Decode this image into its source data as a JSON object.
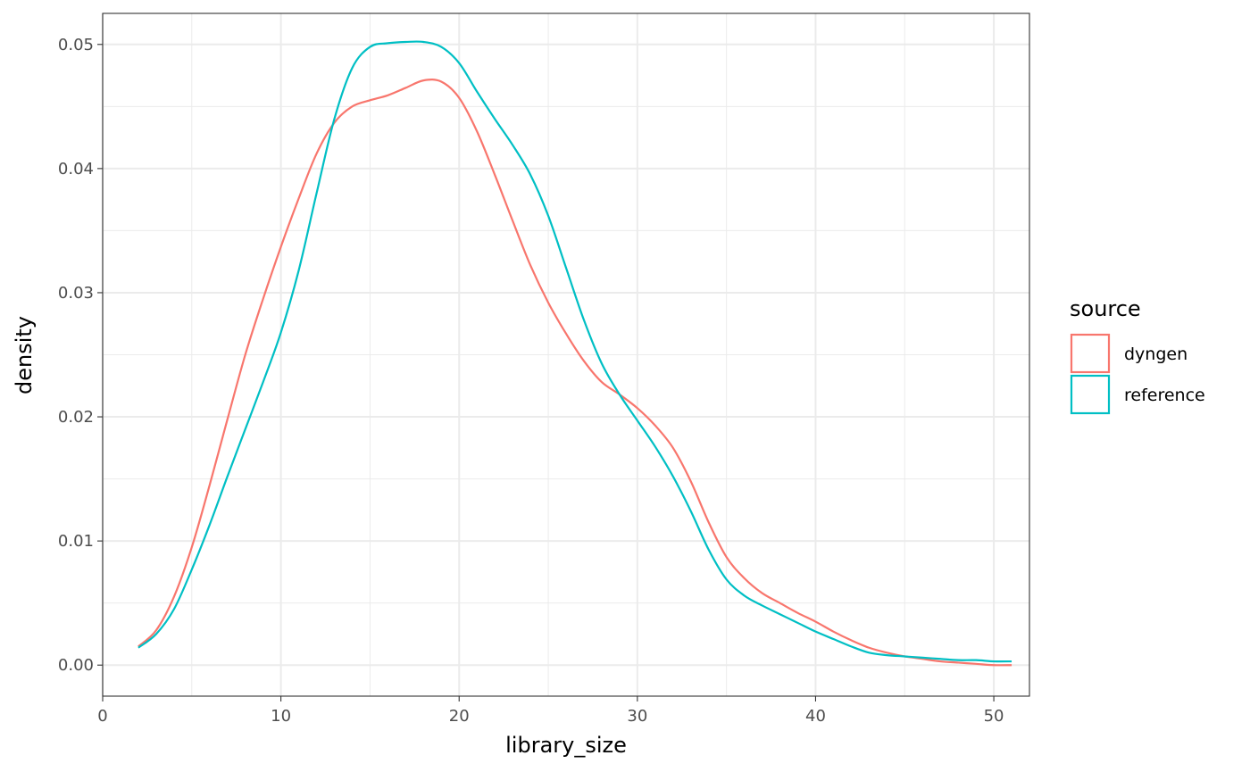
{
  "chart_data": {
    "type": "line",
    "subtype": "density",
    "title": "",
    "xlabel": "library_size",
    "ylabel": "density",
    "xlim": [
      0,
      52
    ],
    "ylim": [
      -0.0025,
      0.0525
    ],
    "x_ticks": [
      0,
      10,
      20,
      30,
      40,
      50
    ],
    "x_tick_labels": [
      "0",
      "10",
      "20",
      "30",
      "40",
      "50"
    ],
    "y_ticks": [
      0.0,
      0.01,
      0.02,
      0.03,
      0.04,
      0.05
    ],
    "y_tick_labels": [
      "0.00",
      "0.01",
      "0.02",
      "0.03",
      "0.04",
      "0.05"
    ],
    "grid": true,
    "legend": {
      "title": "source",
      "position": "right",
      "entries": [
        {
          "label": "dyngen",
          "color": "#F8766D"
        },
        {
          "label": "reference",
          "color": "#00BFC4"
        }
      ]
    },
    "series": [
      {
        "name": "dyngen",
        "color": "#F8766D",
        "points": [
          [
            2,
            0.0015
          ],
          [
            3,
            0.0028
          ],
          [
            4,
            0.0055
          ],
          [
            5,
            0.0095
          ],
          [
            6,
            0.0145
          ],
          [
            7,
            0.0198
          ],
          [
            8,
            0.025
          ],
          [
            9,
            0.0295
          ],
          [
            10,
            0.0337
          ],
          [
            11,
            0.0376
          ],
          [
            12,
            0.0412
          ],
          [
            13,
            0.0437
          ],
          [
            14,
            0.045
          ],
          [
            15,
            0.0455
          ],
          [
            16,
            0.0459
          ],
          [
            17,
            0.0465
          ],
          [
            18,
            0.0471
          ],
          [
            19,
            0.047
          ],
          [
            20,
            0.0457
          ],
          [
            21,
            0.043
          ],
          [
            22,
            0.0395
          ],
          [
            23,
            0.0358
          ],
          [
            24,
            0.0322
          ],
          [
            25,
            0.0292
          ],
          [
            26,
            0.0267
          ],
          [
            27,
            0.0245
          ],
          [
            28,
            0.0228
          ],
          [
            29,
            0.0218
          ],
          [
            30,
            0.0207
          ],
          [
            31,
            0.0193
          ],
          [
            32,
            0.0175
          ],
          [
            33,
            0.0148
          ],
          [
            34,
            0.0115
          ],
          [
            35,
            0.0087
          ],
          [
            36,
            0.007
          ],
          [
            37,
            0.0058
          ],
          [
            38,
            0.005
          ],
          [
            39,
            0.0042
          ],
          [
            40,
            0.0035
          ],
          [
            41,
            0.0027
          ],
          [
            42,
            0.002
          ],
          [
            43,
            0.0014
          ],
          [
            44,
            0.001
          ],
          [
            45,
            0.0007
          ],
          [
            46,
            0.0005
          ],
          [
            47,
            0.0003
          ],
          [
            48,
            0.0002
          ],
          [
            49,
            0.0001
          ],
          [
            50,
            0.0
          ],
          [
            51,
            0.0
          ]
        ]
      },
      {
        "name": "reference",
        "color": "#00BFC4",
        "points": [
          [
            2,
            0.0014
          ],
          [
            3,
            0.0025
          ],
          [
            4,
            0.0045
          ],
          [
            5,
            0.0077
          ],
          [
            6,
            0.0113
          ],
          [
            7,
            0.0152
          ],
          [
            8,
            0.019
          ],
          [
            9,
            0.0228
          ],
          [
            10,
            0.0268
          ],
          [
            11,
            0.0318
          ],
          [
            12,
            0.038
          ],
          [
            13,
            0.044
          ],
          [
            14,
            0.0481
          ],
          [
            15,
            0.0498
          ],
          [
            16,
            0.0501
          ],
          [
            17,
            0.0502
          ],
          [
            18,
            0.0502
          ],
          [
            19,
            0.0498
          ],
          [
            20,
            0.0485
          ],
          [
            21,
            0.0462
          ],
          [
            22,
            0.044
          ],
          [
            23,
            0.0419
          ],
          [
            24,
            0.0395
          ],
          [
            25,
            0.0362
          ],
          [
            26,
            0.032
          ],
          [
            27,
            0.0278
          ],
          [
            28,
            0.0243
          ],
          [
            29,
            0.0218
          ],
          [
            30,
            0.0197
          ],
          [
            31,
            0.0176
          ],
          [
            32,
            0.0152
          ],
          [
            33,
            0.0124
          ],
          [
            34,
            0.0093
          ],
          [
            35,
            0.0069
          ],
          [
            36,
            0.0056
          ],
          [
            37,
            0.0048
          ],
          [
            38,
            0.0041
          ],
          [
            39,
            0.0034
          ],
          [
            40,
            0.0027
          ],
          [
            41,
            0.0021
          ],
          [
            42,
            0.0015
          ],
          [
            43,
            0.001
          ],
          [
            44,
            0.0008
          ],
          [
            45,
            0.0007
          ],
          [
            46,
            0.0006
          ],
          [
            47,
            0.0005
          ],
          [
            48,
            0.0004
          ],
          [
            49,
            0.0004
          ],
          [
            50,
            0.0003
          ],
          [
            51,
            0.0003
          ]
        ]
      }
    ]
  }
}
